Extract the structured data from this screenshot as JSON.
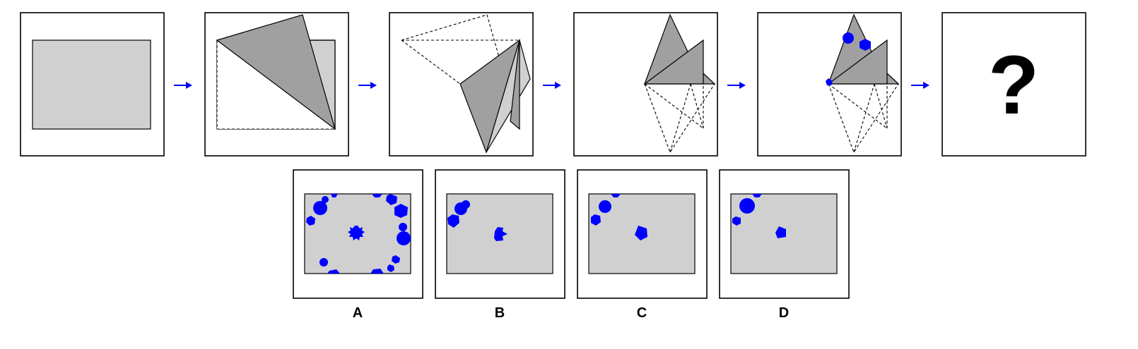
{
  "colors": {
    "paper": "#d0d0d0",
    "fold": "#a0a0a0",
    "hole": "#0000ff",
    "border": "#000000"
  },
  "question_mark": "?",
  "options": [
    {
      "label": "A"
    },
    {
      "label": "B"
    },
    {
      "label": "C"
    },
    {
      "label": "D"
    }
  ]
}
